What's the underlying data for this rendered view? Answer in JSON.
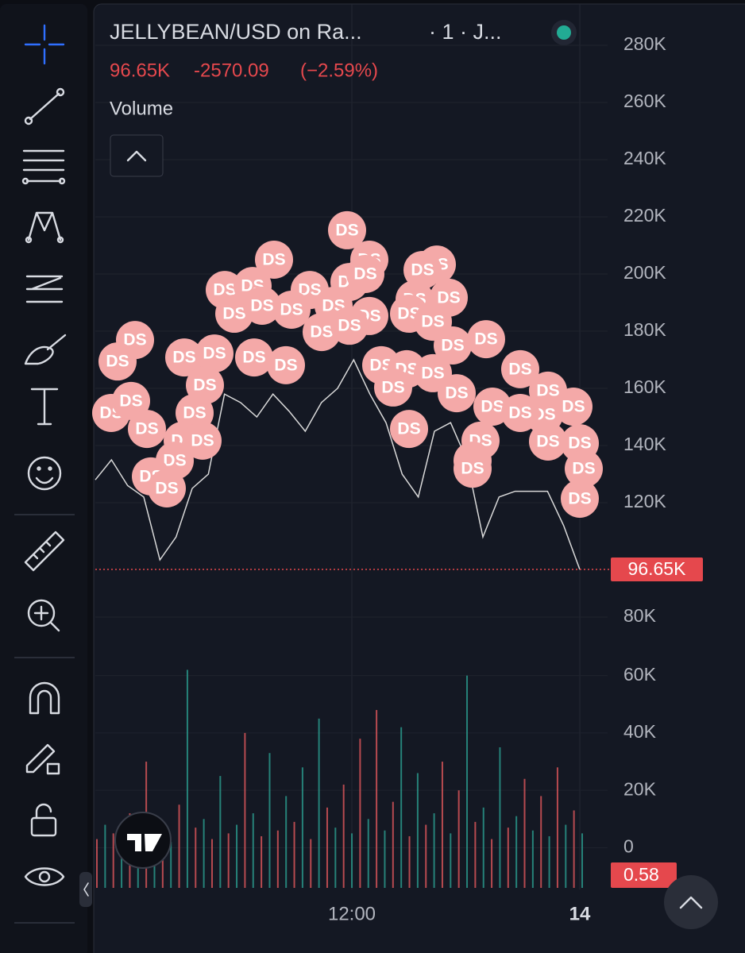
{
  "header": {
    "symbol": "JELLYBEAN/USD on Ra...",
    "interval": "· 1 · J...",
    "price": "96.65K",
    "change": "-2570.09",
    "change_pct": "(−2.59%)"
  },
  "volume_label": "Volume",
  "price_axis": {
    "range": [
      80000,
      280000
    ],
    "ticks": [
      {
        "value": 280000,
        "label": "280K"
      },
      {
        "value": 260000,
        "label": "260K"
      },
      {
        "value": 240000,
        "label": "240K"
      },
      {
        "value": 220000,
        "label": "220K"
      },
      {
        "value": 200000,
        "label": "200K"
      },
      {
        "value": 180000,
        "label": "180K"
      },
      {
        "value": 160000,
        "label": "160K"
      },
      {
        "value": 140000,
        "label": "140K"
      },
      {
        "value": 120000,
        "label": "120K"
      },
      {
        "value": 80000,
        "label": "80K"
      }
    ]
  },
  "volume_axis": {
    "range": [
      -14000,
      66000
    ],
    "ticks": [
      {
        "value": 60000,
        "label": "60K"
      },
      {
        "value": 40000,
        "label": "40K"
      },
      {
        "value": 20000,
        "label": "20K"
      },
      0
    ]
  },
  "last_price": {
    "value": 96650,
    "label": "96.65K"
  },
  "last_volume_label": "0.58",
  "time_labels": [
    "12:00",
    "14"
  ],
  "price_series": {
    "color": "#d9d9d9",
    "values": [
      128000,
      135000,
      126000,
      122000,
      100000,
      108000,
      125000,
      130000,
      158000,
      155000,
      150000,
      158000,
      152000,
      145000,
      155000,
      160000,
      170000,
      158000,
      148000,
      130000,
      122000,
      145000,
      148000,
      135000,
      108000,
      122000,
      124000,
      124000,
      124000,
      112000,
      96650
    ]
  },
  "volume_series": {
    "colors": [
      "#e0575b",
      "#2a9d8f"
    ],
    "values": [
      3000,
      8000,
      5000,
      2000,
      12000,
      6000,
      30000,
      4000,
      9000,
      2000,
      15000,
      62000,
      7000,
      10000,
      3000,
      25000,
      5000,
      8000,
      40000,
      12000,
      4000,
      33000,
      6000,
      18000,
      9000,
      28000,
      3000,
      45000,
      14000,
      7000,
      22000,
      5000,
      38000,
      10000,
      48000,
      6000,
      16000,
      42000,
      4000,
      26000,
      8000,
      12000,
      30000,
      5000,
      20000,
      60000,
      9000,
      14000,
      3000,
      35000,
      7000,
      11000,
      24000,
      6000,
      18000,
      4000,
      28000,
      8000,
      13000,
      5000
    ]
  },
  "marker_color": "#f4a9a8",
  "markers": [
    {
      "label": "DS",
      "price": 215300
    },
    {
      "label": "DS",
      "price": 205000
    },
    {
      "label": "DS",
      "price": 205000
    },
    {
      "label": "DS",
      "price": 203300
    },
    {
      "label": "DS",
      "price": 201400
    },
    {
      "label": "DS",
      "price": 194400
    },
    {
      "label": "DS",
      "price": 194400
    },
    {
      "label": "DS",
      "price": 195800
    },
    {
      "label": "DS",
      "price": 197200
    },
    {
      "label": "DS",
      "price": 200000
    },
    {
      "label": "DS",
      "price": 191100
    },
    {
      "label": "DS",
      "price": 191700
    },
    {
      "label": "DS",
      "price": 187500
    },
    {
      "label": "DS",
      "price": 185300
    },
    {
      "label": "DS",
      "price": 188900
    },
    {
      "label": "DS",
      "price": 186100
    },
    {
      "label": "DS",
      "price": 188900
    },
    {
      "label": "DS",
      "price": 186100
    },
    {
      "label": "DS",
      "price": 183300
    },
    {
      "label": "DS",
      "price": 177200
    },
    {
      "label": "DS",
      "price": 175000
    },
    {
      "label": "DS",
      "price": 176900
    },
    {
      "label": "DS",
      "price": 169400
    },
    {
      "label": "DS",
      "price": 170800
    },
    {
      "label": "DS",
      "price": 172200
    },
    {
      "label": "DS",
      "price": 170800
    },
    {
      "label": "DS",
      "price": 168100
    },
    {
      "label": "DS",
      "price": 179700
    },
    {
      "label": "DS",
      "price": 181900
    },
    {
      "label": "DS",
      "price": 168100
    },
    {
      "label": "DS",
      "price": 166700
    },
    {
      "label": "DS",
      "price": 165300
    },
    {
      "label": "DS",
      "price": 158300
    },
    {
      "label": "DS",
      "price": 166700
    },
    {
      "label": "DS",
      "price": 159200
    },
    {
      "label": "DS",
      "price": 153600
    },
    {
      "label": "DS",
      "price": 161100
    },
    {
      "label": "DS",
      "price": 160300
    },
    {
      "label": "DS",
      "price": 153600
    },
    {
      "label": "DS",
      "price": 150800
    },
    {
      "label": "DS",
      "price": 151400
    },
    {
      "label": "DS",
      "price": 151400
    },
    {
      "label": "DS",
      "price": 155600
    },
    {
      "label": "DS",
      "price": 145800
    },
    {
      "label": "DS",
      "price": 151400
    },
    {
      "label": "DS",
      "price": 145800
    },
    {
      "label": "DS",
      "price": 141700
    },
    {
      "label": "DS",
      "price": 141700
    },
    {
      "label": "DS",
      "price": 141700
    },
    {
      "label": "DS",
      "price": 140800
    },
    {
      "label": "DS",
      "price": 141400
    },
    {
      "label": "DS",
      "price": 134700
    },
    {
      "label": "DS",
      "price": 134700
    },
    {
      "label": "DS",
      "price": 131900
    },
    {
      "label": "DS",
      "price": 129200
    },
    {
      "label": "DS",
      "price": 125000
    },
    {
      "label": "DS",
      "price": 121400
    },
    {
      "label": "DS",
      "price": 131900
    }
  ]
}
